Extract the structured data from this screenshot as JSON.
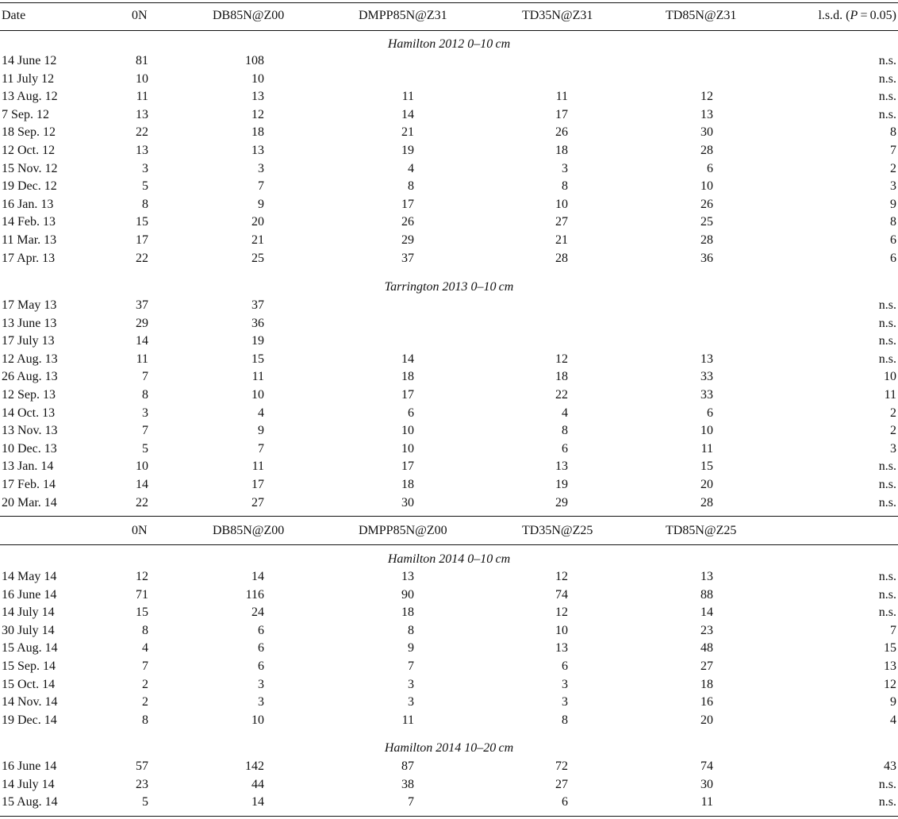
{
  "header1": [
    "Date",
    "0N",
    "DB85N@Z00",
    "DMPP85N@Z31",
    "TD35N@Z31",
    "TD85N@Z31",
    "l.s.d. (P = 0.05)"
  ],
  "header2": [
    "",
    "0N",
    "DB85N@Z00",
    "DMPP85N@Z00",
    "TD35N@Z25",
    "TD85N@Z25",
    ""
  ],
  "sections": [
    {
      "title": "Hamilton 2012 0–10 cm",
      "rows": [
        [
          "14 June 12",
          "81",
          "108",
          "",
          "",
          "",
          "n.s."
        ],
        [
          "11 July 12",
          "10",
          "10",
          "",
          "",
          "",
          "n.s."
        ],
        [
          "13 Aug. 12",
          "11",
          "13",
          "11",
          "11",
          "12",
          "n.s."
        ],
        [
          "7 Sep. 12",
          "13",
          "12",
          "14",
          "17",
          "13",
          "n.s."
        ],
        [
          "18 Sep. 12",
          "22",
          "18",
          "21",
          "26",
          "30",
          "8"
        ],
        [
          "12 Oct. 12",
          "13",
          "13",
          "19",
          "18",
          "28",
          "7"
        ],
        [
          "15 Nov. 12",
          "3",
          "3",
          "4",
          "3",
          "6",
          "2"
        ],
        [
          "19 Dec. 12",
          "5",
          "7",
          "8",
          "8",
          "10",
          "3"
        ],
        [
          "16 Jan. 13",
          "8",
          "9",
          "17",
          "10",
          "26",
          "9"
        ],
        [
          "14 Feb. 13",
          "15",
          "20",
          "26",
          "27",
          "25",
          "8"
        ],
        [
          "11 Mar. 13",
          "17",
          "21",
          "29",
          "21",
          "28",
          "6"
        ],
        [
          "17 Apr. 13",
          "22",
          "25",
          "37",
          "28",
          "36",
          "6"
        ]
      ]
    },
    {
      "title": "Tarrington 2013 0–10 cm",
      "rows": [
        [
          "17 May 13",
          "37",
          "37",
          "",
          "",
          "",
          "n.s."
        ],
        [
          "13 June 13",
          "29",
          "36",
          "",
          "",
          "",
          "n.s."
        ],
        [
          "17 July 13",
          "14",
          "19",
          "",
          "",
          "",
          "n.s."
        ],
        [
          "12 Aug. 13",
          "11",
          "15",
          "14",
          "12",
          "13",
          "n.s."
        ],
        [
          "26 Aug. 13",
          "7",
          "11",
          "18",
          "18",
          "33",
          "10"
        ],
        [
          "12 Sep. 13",
          "8",
          "10",
          "17",
          "22",
          "33",
          "11"
        ],
        [
          "14 Oct. 13",
          "3",
          "4",
          "6",
          "4",
          "6",
          "2"
        ],
        [
          "13 Nov. 13",
          "7",
          "9",
          "10",
          "8",
          "10",
          "2"
        ],
        [
          "10 Dec. 13",
          "5",
          "7",
          "10",
          "6",
          "11",
          "3"
        ],
        [
          "13 Jan. 14",
          "10",
          "11",
          "17",
          "13",
          "15",
          "n.s."
        ],
        [
          "17 Feb. 14",
          "14",
          "17",
          "18",
          "19",
          "20",
          "n.s."
        ],
        [
          "20 Mar. 14",
          "22",
          "27",
          "30",
          "29",
          "28",
          "n.s."
        ]
      ]
    },
    {
      "title": "Hamilton 2014 0–10 cm",
      "rows": [
        [
          "14 May 14",
          "12",
          "14",
          "13",
          "12",
          "13",
          "n.s."
        ],
        [
          "16 June 14",
          "71",
          "116",
          "90",
          "74",
          "88",
          "n.s."
        ],
        [
          "14 July 14",
          "15",
          "24",
          "18",
          "12",
          "14",
          "n.s."
        ],
        [
          "30 July 14",
          "8",
          "6",
          "8",
          "10",
          "23",
          "7"
        ],
        [
          "15 Aug. 14",
          "4",
          "6",
          "9",
          "13",
          "48",
          "15"
        ],
        [
          "15 Sep. 14",
          "7",
          "6",
          "7",
          "6",
          "27",
          "13"
        ],
        [
          "15 Oct. 14",
          "2",
          "3",
          "3",
          "3",
          "18",
          "12"
        ],
        [
          "14 Nov. 14",
          "2",
          "3",
          "3",
          "3",
          "16",
          "9"
        ],
        [
          "19 Dec. 14",
          "8",
          "10",
          "11",
          "8",
          "20",
          "4"
        ]
      ]
    },
    {
      "title": "Hamilton 2014 10–20 cm",
      "rows": [
        [
          "16 June 14",
          "57",
          "142",
          "87",
          "72",
          "74",
          "43"
        ],
        [
          "14 July 14",
          "23",
          "44",
          "38",
          "27",
          "30",
          "n.s."
        ],
        [
          "15 Aug. 14",
          "5",
          "14",
          "7",
          "6",
          "11",
          "n.s."
        ]
      ]
    }
  ]
}
